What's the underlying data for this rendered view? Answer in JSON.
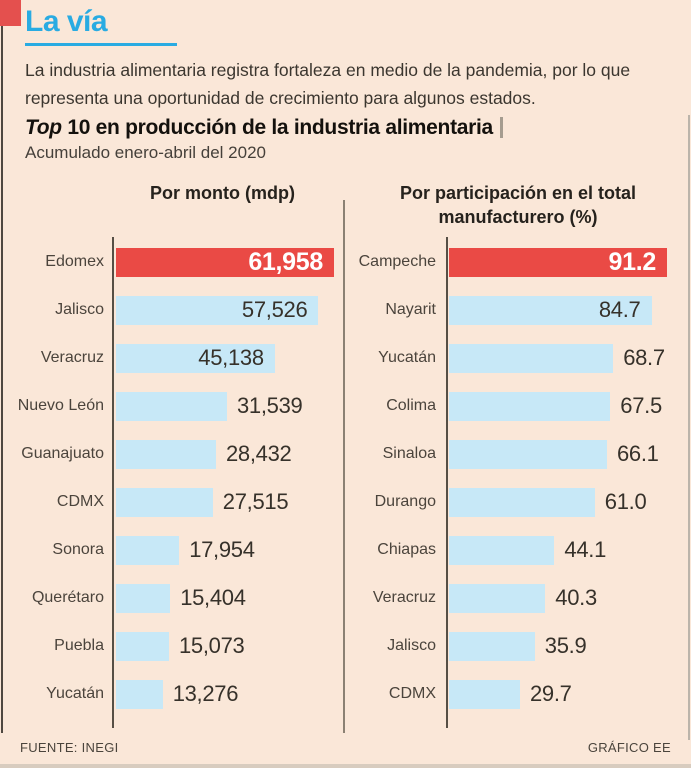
{
  "page": {
    "kicker": "La vía",
    "description": "La industria alimentaria registra fortaleza en medio de la pandemia, por lo que representa una oportunidad de crecimiento para algunos estados.",
    "title_emphasis": "Top",
    "title_rest": " 10 en producción de la industria alimentaria",
    "subtitle": "Acumulado enero-abril del 2020",
    "footer_left": "FUENTE: INEGI",
    "footer_right": "GRÁFICO EE",
    "colors": {
      "background": "#FAE7D8",
      "accent_cyan": "#29ABE2",
      "bar_blue": "#C7E8F7",
      "bar_red": "#EA4A45",
      "text_dark": "#39342D"
    }
  },
  "chart_data": [
    {
      "type": "bar",
      "orientation": "horizontal",
      "title": "Por monto (mdp)",
      "categories": [
        "Edomex",
        "Jalisco",
        "Veracruz",
        "Nuevo León",
        "Guanajuato",
        "CDMX",
        "Sonora",
        "Querétaro",
        "Puebla",
        "Yucatán"
      ],
      "values": [
        61958,
        57526,
        45138,
        31539,
        28432,
        27515,
        17954,
        15404,
        15073,
        13276
      ],
      "value_labels": [
        "61,958",
        "57,526",
        "45,138",
        "31,539",
        "28,432",
        "27,515",
        "17,954",
        "15,404",
        "15,073",
        "13,276"
      ],
      "xlim": [
        0,
        61958
      ],
      "highlight_index": 0,
      "inside_label_count": 3,
      "grid": false,
      "legend": false
    },
    {
      "type": "bar",
      "orientation": "horizontal",
      "title": "Por participación en el total manufacturero (%)",
      "categories": [
        "Campeche",
        "Nayarit",
        "Yucatán",
        "Colima",
        "Sinaloa",
        "Durango",
        "Chiapas",
        "Veracruz",
        "Jalisco",
        "CDMX"
      ],
      "values": [
        91.2,
        84.7,
        68.7,
        67.5,
        66.1,
        61.0,
        44.1,
        40.3,
        35.9,
        29.7
      ],
      "value_labels": [
        "91.2",
        "84.7",
        "68.7",
        "67.5",
        "66.1",
        "61.0",
        "44.1",
        "40.3",
        "35.9",
        "29.7"
      ],
      "xlim": [
        0,
        91.2
      ],
      "highlight_index": 0,
      "inside_label_count": 2,
      "grid": false,
      "legend": false
    }
  ]
}
